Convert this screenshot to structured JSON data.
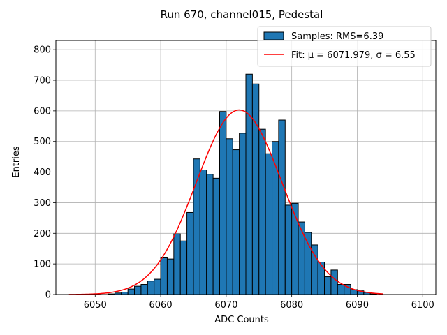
{
  "chart_data": {
    "type": "bar",
    "title": "Run 670, channel015, Pedestal",
    "xlabel": "ADC Counts",
    "ylabel": "Entries",
    "xlim": [
      6044,
      6102
    ],
    "ylim": [
      0,
      830
    ],
    "xticks": [
      6050,
      6060,
      6070,
      6080,
      6090,
      6100
    ],
    "yticks": [
      0,
      100,
      200,
      300,
      400,
      500,
      600,
      700,
      800
    ],
    "grid": true,
    "legend_position": "top-right",
    "histogram": {
      "label": "Samples: RMS=6.39",
      "color": "#1f77b4",
      "edgecolor": "#000000",
      "bin_width": 1,
      "bin_lefts": [
        6052,
        6053,
        6054,
        6055,
        6056,
        6057,
        6058,
        6059,
        6060,
        6061,
        6062,
        6063,
        6064,
        6065,
        6066,
        6067,
        6068,
        6069,
        6070,
        6071,
        6072,
        6073,
        6074,
        6075,
        6076,
        6077,
        6078,
        6079,
        6080,
        6081,
        6082,
        6083,
        6084,
        6085,
        6086,
        6087,
        6088,
        6089,
        6090,
        6091,
        6092
      ],
      "counts": [
        2,
        5,
        8,
        18,
        27,
        33,
        44,
        50,
        122,
        116,
        198,
        175,
        268,
        443,
        407,
        393,
        380,
        598,
        509,
        473,
        527,
        720,
        688,
        540,
        460,
        500,
        570,
        292,
        298,
        237,
        203,
        162,
        106,
        58,
        80,
        33,
        33,
        16,
        12,
        7,
        2
      ]
    },
    "fit": {
      "label": "Fit: μ = 6071.979, σ = 6.55",
      "color": "#ff0000",
      "mu": 6071.979,
      "sigma": 6.55,
      "amplitude": 603,
      "x_range": [
        6046,
        6094
      ]
    }
  }
}
